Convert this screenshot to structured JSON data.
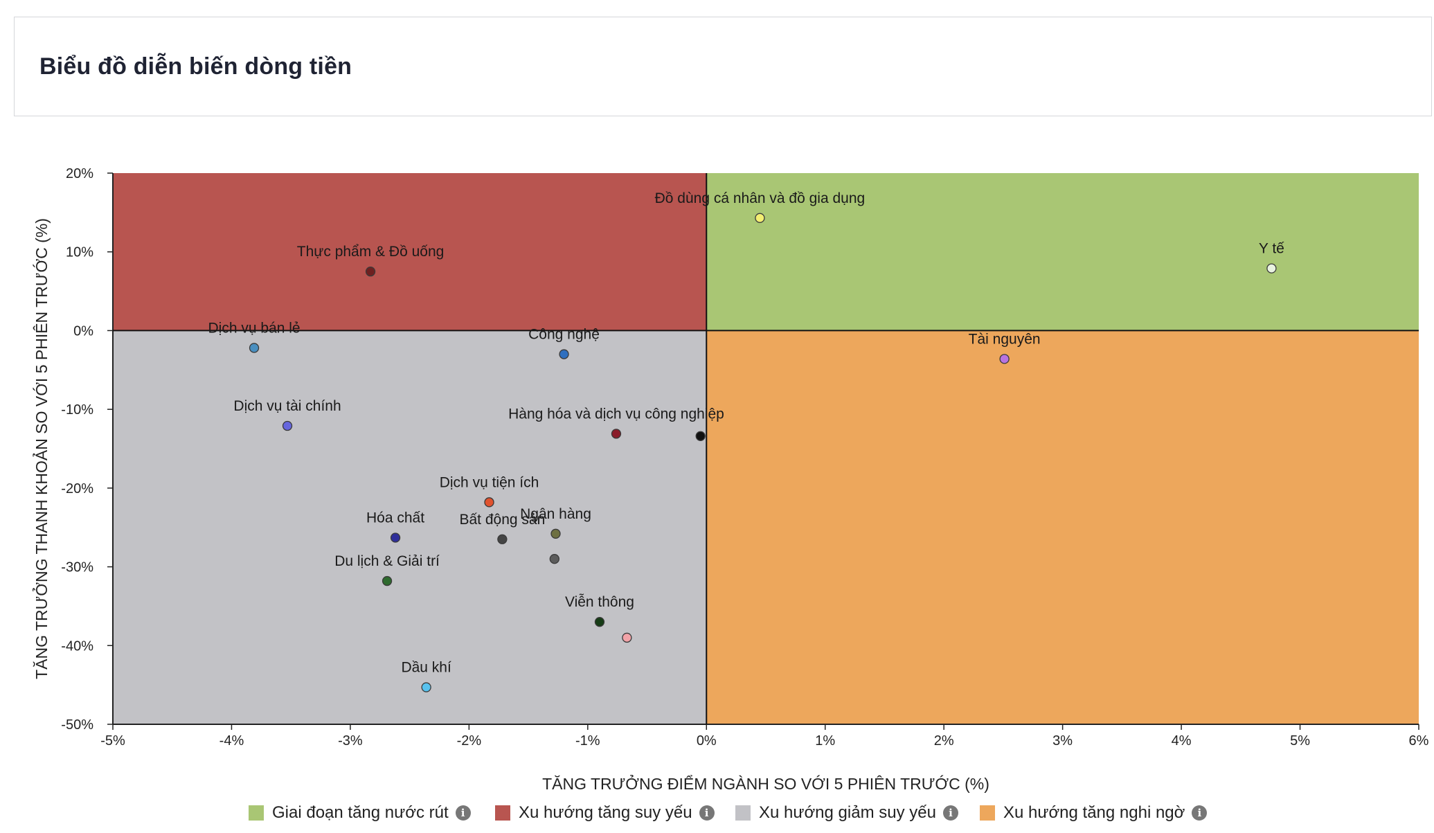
{
  "header": {
    "title": "Biểu đồ diễn biến dòng tiền"
  },
  "chart_data": {
    "type": "scatter",
    "title": "",
    "xlabel": "TĂNG TRƯỞNG ĐIỂM NGÀNH SO VỚI 5 PHIÊN TRƯỚC (%)",
    "ylabel": "TĂNG TRƯỞNG THANH KHOẢN SO VỚI 5 PHIÊN TRƯỚC (%)",
    "xlim": [
      -5,
      6
    ],
    "ylim": [
      -50,
      20
    ],
    "xticks": [
      "-5%",
      "-4%",
      "-3%",
      "-2%",
      "-1%",
      "0%",
      "1%",
      "2%",
      "3%",
      "4%",
      "5%",
      "6%"
    ],
    "yticks": [
      "20%",
      "10%",
      "0%",
      "-10%",
      "-20%",
      "-30%",
      "-40%",
      "-50%"
    ],
    "quadrants": [
      {
        "name": "Giai đoạn tăng nước rút",
        "region": "top-right",
        "color": "#a9c674"
      },
      {
        "name": "Xu hướng tăng suy yếu",
        "region": "top-left",
        "color": "#b85550"
      },
      {
        "name": "Xu hướng giảm suy yếu",
        "region": "bottom-left",
        "color": "#c2c2c6"
      },
      {
        "name": "Xu hướng tăng nghi ngờ",
        "region": "bottom-right",
        "color": "#eda75c"
      }
    ],
    "points": [
      {
        "label": "Đồ dùng cá nhân và đồ gia dụng",
        "x": 0.45,
        "y": 14.3,
        "color": "#f3ee72"
      },
      {
        "label": "Y tế",
        "x": 4.76,
        "y": 7.9,
        "color": "#e9f3e0"
      },
      {
        "label": "Thực phẩm & Đồ uống",
        "x": -2.83,
        "y": 7.5,
        "color": "#6e2020"
      },
      {
        "label": "Dịch vụ bán lẻ",
        "x": -3.81,
        "y": -2.2,
        "color": "#4a8fc0"
      },
      {
        "label": "Công nghệ",
        "x": -1.2,
        "y": -3.0,
        "color": "#2f6fbf"
      },
      {
        "label": "Tài nguyên",
        "x": 2.51,
        "y": -3.6,
        "color": "#b974e0"
      },
      {
        "label": "Dịch vụ tài chính",
        "x": -3.53,
        "y": -12.1,
        "color": "#6666dd"
      },
      {
        "label": "Hàng hóa và dịch vụ công nghiệp",
        "x": -0.76,
        "y": -13.1,
        "color": "#8a1c2a"
      },
      {
        "label": "",
        "x": -0.05,
        "y": -13.4,
        "color": "#111111"
      },
      {
        "label": "Dịch vụ tiện ích",
        "x": -1.83,
        "y": -21.8,
        "color": "#e0522e"
      },
      {
        "label": "Ngân hàng",
        "x": -1.27,
        "y": -25.8,
        "color": "#6e7042"
      },
      {
        "label": "Hóa chất",
        "x": -2.62,
        "y": -26.3,
        "color": "#2e2e9a"
      },
      {
        "label": "Bất động sản",
        "x": -1.72,
        "y": -26.5,
        "color": "#444444"
      },
      {
        "label": "",
        "x": -1.28,
        "y": -29.0,
        "color": "#5c5c5c"
      },
      {
        "label": "Du lịch & Giải trí",
        "x": -2.69,
        "y": -31.8,
        "color": "#2e6a2e"
      },
      {
        "label": "Viễn thông",
        "x": -0.9,
        "y": -37.0,
        "color": "#163c16"
      },
      {
        "label": "",
        "x": -0.67,
        "y": -39.0,
        "color": "#f2a3a8"
      },
      {
        "label": "Dầu khí",
        "x": -2.36,
        "y": -45.3,
        "color": "#58c2ee"
      }
    ],
    "grid": false,
    "legend_position": "bottom"
  },
  "legend": {
    "items": [
      {
        "label": "Giai đoạn tăng nước rút",
        "color": "#a9c674",
        "info": "i"
      },
      {
        "label": "Xu hướng tăng suy yếu",
        "color": "#b85550",
        "info": "i"
      },
      {
        "label": "Xu hướng giảm suy yếu",
        "color": "#c2c2c6",
        "info": "i"
      },
      {
        "label": "Xu hướng tăng nghi ngờ",
        "color": "#eda75c",
        "info": "i"
      }
    ]
  }
}
